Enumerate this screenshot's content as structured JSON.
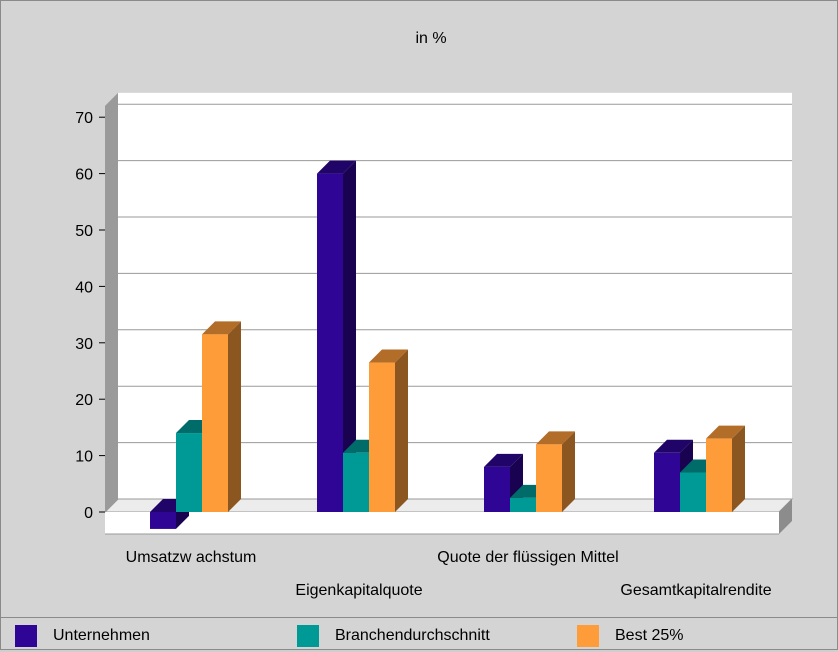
{
  "chart_data": {
    "type": "bar",
    "title": "in %",
    "categories": [
      "Umsatzw achstum",
      "Eigenkapitalquote",
      "Quote der flüssigen Mittel",
      "Gesamtkapitalrendite"
    ],
    "series": [
      {
        "name": "Unternehmen",
        "color": "#2e0594",
        "values": [
          -3,
          60,
          8,
          10.5
        ]
      },
      {
        "name": "Branchendurchschnitt",
        "color": "#009a96",
        "values": [
          14,
          10.5,
          2.5,
          7
        ]
      },
      {
        "name": "Best 25%",
        "color": "#fe9c3a",
        "values": [
          31.5,
          26.5,
          12,
          13
        ]
      }
    ],
    "ylim": [
      0,
      70
    ],
    "yticks": [
      0,
      10,
      20,
      30,
      40,
      50,
      60,
      70
    ],
    "grid": true,
    "legend_position": "bottom",
    "style": "3d-bar"
  }
}
